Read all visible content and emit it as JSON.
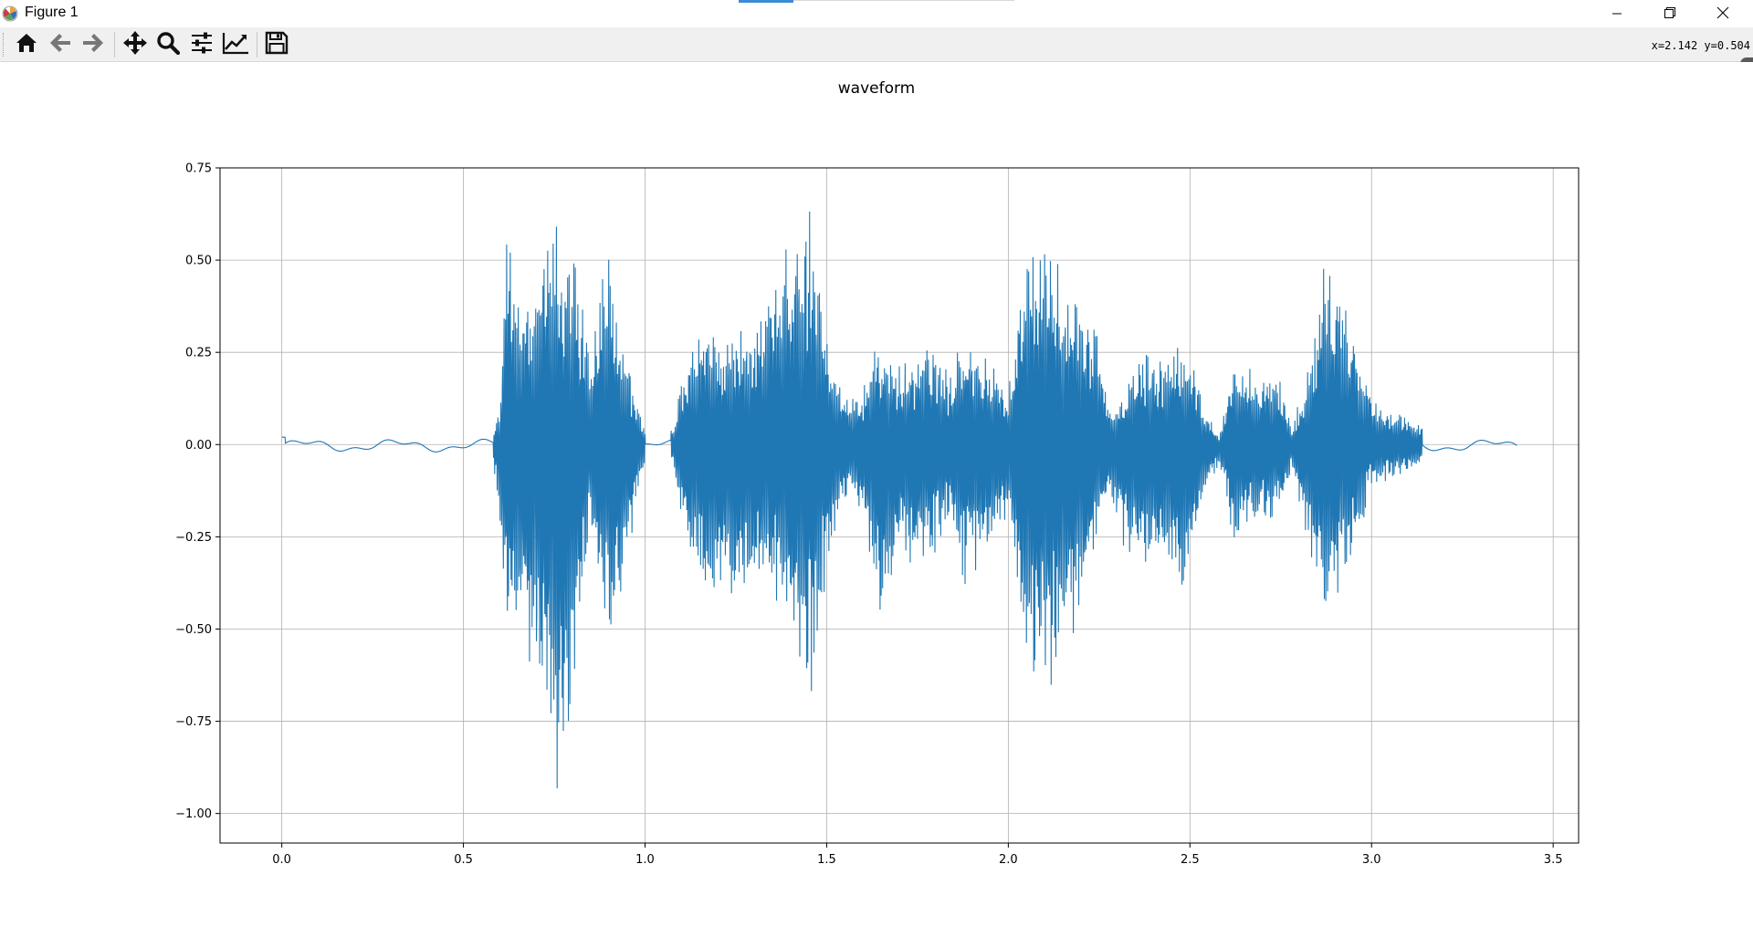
{
  "window": {
    "title": "Figure 1",
    "icons": {
      "app": "matplotlib-logo-icon",
      "minimize": "minimize-icon",
      "maximize": "restore-icon",
      "close": "close-icon"
    }
  },
  "toolbar": {
    "buttons": [
      {
        "name": "home-icon",
        "tooltip": "Reset original view"
      },
      {
        "name": "back-arrow-icon",
        "tooltip": "Back to previous view"
      },
      {
        "name": "forward-arrow-icon",
        "tooltip": "Forward to next view"
      },
      {
        "name": "pan-move-icon",
        "tooltip": "Pan axes"
      },
      {
        "name": "zoom-magnifier-icon",
        "tooltip": "Zoom to rectangle"
      },
      {
        "name": "subplots-sliders-icon",
        "tooltip": "Configure subplots"
      },
      {
        "name": "edit-axis-chart-icon",
        "tooltip": "Edit axis, curve and image parameters"
      },
      {
        "name": "save-floppy-icon",
        "tooltip": "Save the figure"
      }
    ],
    "coords": "x=2.142 y=0.504"
  },
  "colors": {
    "line": "#1f77b4",
    "grid": "#b0b0b0",
    "toolbar_bg": "#f0f0f0",
    "axes_edge": "#000000"
  },
  "chart_data": {
    "type": "line",
    "title": "waveform",
    "xlabel": "",
    "ylabel": "",
    "xlim": [
      -0.17,
      3.57
    ],
    "ylim": [
      -1.08,
      0.75
    ],
    "xticks": [
      0.0,
      0.5,
      1.0,
      1.5,
      2.0,
      2.5,
      3.0,
      3.5
    ],
    "xtick_labels": [
      "0.0",
      "0.5",
      "1.0",
      "1.5",
      "2.0",
      "2.5",
      "3.0",
      "3.5"
    ],
    "yticks": [
      0.75,
      0.5,
      0.25,
      0.0,
      -0.25,
      -0.5,
      -0.75,
      -1.0
    ],
    "ytick_labels": [
      "0.75",
      "0.50",
      "0.25",
      "0.00",
      "−0.25",
      "−0.50",
      "−0.75",
      "−1.00"
    ],
    "grid": true,
    "series": [
      {
        "color": "#1f77b4",
        "duration": 3.4,
        "envelope": {
          "t": [
            0.0,
            0.3,
            0.52,
            0.58,
            0.6,
            0.615,
            0.63,
            0.66,
            0.7,
            0.73,
            0.755,
            0.77,
            0.8,
            0.85,
            0.88,
            0.9,
            0.92,
            0.95,
            0.98,
            1.0,
            1.06,
            1.08,
            1.1,
            1.14,
            1.16,
            1.2,
            1.25,
            1.3,
            1.35,
            1.4,
            1.44,
            1.46,
            1.5,
            1.56,
            1.6,
            1.63,
            1.66,
            1.7,
            1.75,
            1.8,
            1.84,
            1.88,
            1.94,
            2.0,
            2.04,
            2.06,
            2.1,
            2.12,
            2.16,
            2.2,
            2.24,
            2.28,
            2.32,
            2.36,
            2.4,
            2.44,
            2.48,
            2.5,
            2.54,
            2.58,
            2.62,
            2.66,
            2.7,
            2.74,
            2.78,
            2.82,
            2.85,
            2.87,
            2.9,
            2.94,
            3.0,
            3.04,
            3.08,
            3.14,
            3.2,
            3.3,
            3.4
          ],
          "pos": [
            0.02,
            0.02,
            0.02,
            0.03,
            0.1,
            0.6,
            0.62,
            0.35,
            0.45,
            0.6,
            0.66,
            0.55,
            0.56,
            0.25,
            0.45,
            0.52,
            0.35,
            0.28,
            0.1,
            0.05,
            0.04,
            0.05,
            0.18,
            0.3,
            0.36,
            0.3,
            0.3,
            0.35,
            0.45,
            0.58,
            0.67,
            0.65,
            0.3,
            0.12,
            0.15,
            0.27,
            0.28,
            0.22,
            0.28,
            0.28,
            0.2,
            0.32,
            0.25,
            0.15,
            0.5,
            0.57,
            0.55,
            0.56,
            0.45,
            0.45,
            0.33,
            0.1,
            0.15,
            0.25,
            0.27,
            0.25,
            0.28,
            0.26,
            0.1,
            0.02,
            0.22,
            0.24,
            0.18,
            0.21,
            0.04,
            0.2,
            0.35,
            0.5,
            0.47,
            0.35,
            0.12,
            0.1,
            0.08,
            0.05,
            0.02,
            0.02,
            0.02
          ],
          "neg": [
            0.02,
            0.02,
            0.02,
            0.03,
            0.2,
            0.5,
            0.52,
            0.55,
            0.7,
            0.8,
            1.0,
            0.9,
            0.7,
            0.2,
            0.45,
            0.6,
            0.5,
            0.4,
            0.15,
            0.05,
            0.04,
            0.06,
            0.25,
            0.38,
            0.43,
            0.42,
            0.4,
            0.4,
            0.45,
            0.55,
            0.72,
            0.7,
            0.35,
            0.12,
            0.2,
            0.42,
            0.5,
            0.3,
            0.35,
            0.3,
            0.22,
            0.4,
            0.3,
            0.2,
            0.55,
            0.68,
            0.65,
            0.69,
            0.55,
            0.5,
            0.3,
            0.15,
            0.3,
            0.35,
            0.35,
            0.35,
            0.44,
            0.35,
            0.15,
            0.05,
            0.3,
            0.25,
            0.22,
            0.22,
            0.07,
            0.25,
            0.4,
            0.5,
            0.47,
            0.35,
            0.12,
            0.1,
            0.08,
            0.05,
            0.02,
            0.02,
            0.02
          ]
        }
      }
    ]
  }
}
